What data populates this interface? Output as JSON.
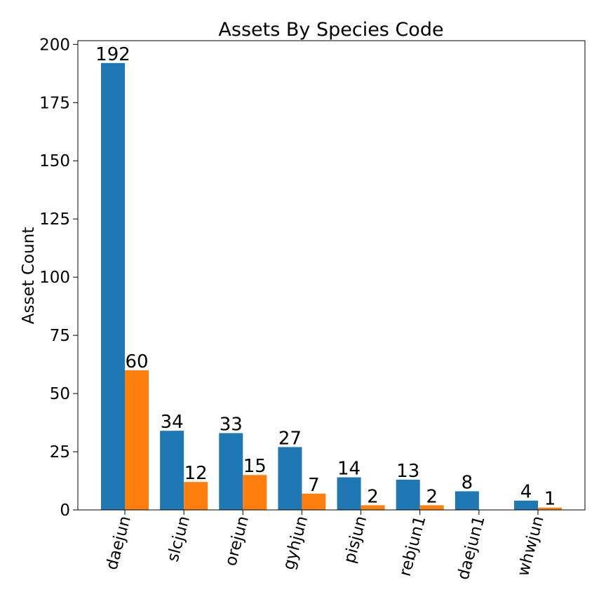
{
  "chart_data": {
    "type": "bar",
    "title": "Assets By Species Code",
    "xlabel": "",
    "ylabel": "Asset Count",
    "categories": [
      "daejun",
      "slcjun",
      "orejun",
      "gyhjun",
      "pisjun",
      "rebjun1",
      "daejun1",
      "whwjun"
    ],
    "series": [
      {
        "values": [
          192,
          34,
          33,
          27,
          14,
          13,
          8,
          4
        ],
        "color": "#1f77b4"
      },
      {
        "values": [
          60,
          12,
          15,
          7,
          2,
          2,
          null,
          1
        ],
        "color": "#ff7f0e"
      }
    ],
    "ylim": [
      0,
      201.6
    ],
    "yticks": [
      0,
      25,
      50,
      75,
      100,
      125,
      150,
      175,
      200
    ],
    "grid": false,
    "legend": "none"
  }
}
